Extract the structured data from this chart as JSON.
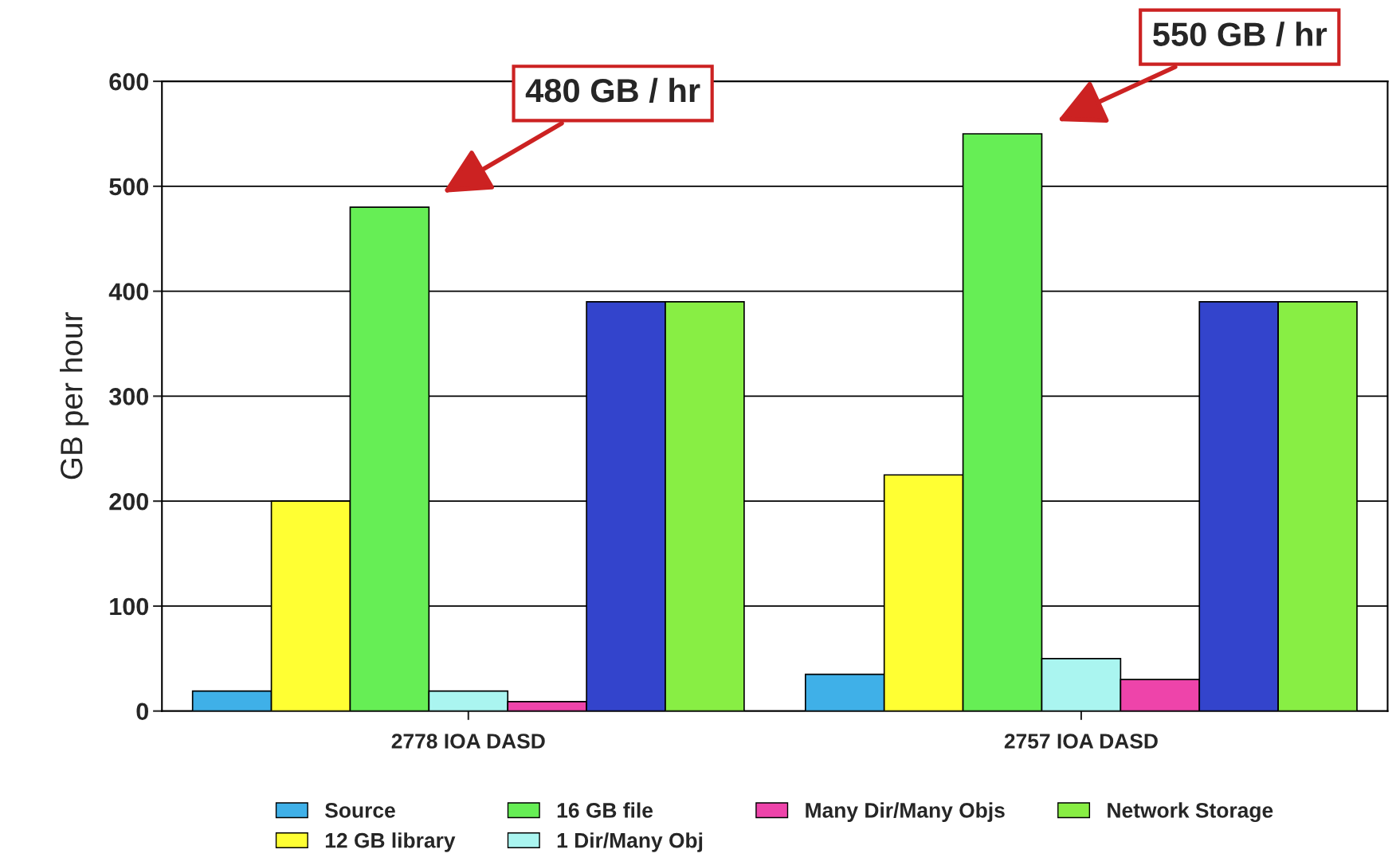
{
  "chart_data": {
    "type": "bar",
    "ylabel": "GB per hour",
    "categories": [
      "2778 IOA DASD",
      "2757 IOA DASD"
    ],
    "series": [
      {
        "name": "Source",
        "color": "#3fb0e8",
        "values": [
          19,
          35
        ]
      },
      {
        "name": "12 GB library",
        "color": "#ffff33",
        "values": [
          200,
          225
        ]
      },
      {
        "name": "16 GB file",
        "color": "#66ee55",
        "values": [
          480,
          550
        ]
      },
      {
        "name": "1 Dir/Many Obj",
        "color": "#aaf5f0",
        "values": [
          19,
          50
        ]
      },
      {
        "name": "Many Dir/Many Objs",
        "color": "#ee44aa",
        "values": [
          9,
          30
        ]
      },
      {
        "color": "#3344cc",
        "values": [
          390,
          390
        ]
      },
      {
        "name": "Network Storage",
        "color": "#88ee44",
        "values": [
          390,
          390
        ]
      }
    ],
    "ylim": [
      0,
      600
    ],
    "yticks": [
      0,
      100,
      200,
      300,
      400,
      500,
      600
    ],
    "grid": "y",
    "legend": "bottom",
    "annotations": [
      "480 GB / hr",
      "550 GB / hr"
    ]
  }
}
